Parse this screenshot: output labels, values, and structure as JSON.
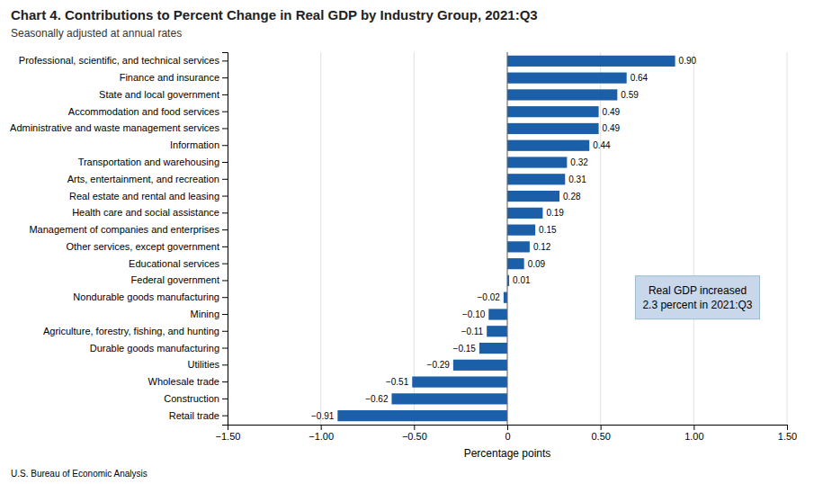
{
  "chart_data": {
    "type": "bar",
    "orientation": "horizontal",
    "title": "Chart 4. Contributions to Percent Change in Real GDP by Industry Group, 2021:Q3",
    "subtitle": "Seasonally adjusted at annual rates",
    "xlabel": "Percentage points",
    "footer": "U.S. Bureau of Economic Analysis",
    "annotations": [
      "Real GDP increased",
      "2.3 percent in 2021:Q3"
    ],
    "categories": [
      "Professional, scientific, and technical services",
      "Finance and insurance",
      "State and local government",
      "Accommodation and food services",
      "Administrative and waste management services",
      "Information",
      "Transportation and warehousing",
      "Arts, entertainment, and recreation",
      "Real estate and rental and leasing",
      "Health care and social assistance",
      "Management of companies and enterprises",
      "Other services, except government",
      "Educational services",
      "Federal government",
      "Nondurable goods manufacturing",
      "Mining",
      "Agriculture, forestry, fishing, and hunting",
      "Durable goods manufacturing",
      "Utilities",
      "Wholesale trade",
      "Construction",
      "Retail trade"
    ],
    "values": [
      0.9,
      0.64,
      0.59,
      0.49,
      0.49,
      0.44,
      0.32,
      0.31,
      0.28,
      0.19,
      0.15,
      0.12,
      0.09,
      0.01,
      -0.02,
      -0.1,
      -0.11,
      -0.15,
      -0.29,
      -0.51,
      -0.62,
      -0.91
    ],
    "value_labels": [
      "0.90",
      "0.64",
      "0.59",
      "0.49",
      "0.49",
      "0.44",
      "0.32",
      "0.31",
      "0.28",
      "0.19",
      "0.15",
      "0.12",
      "0.09",
      "0.01",
      "−0.02",
      "−0.10",
      "−0.11",
      "−0.15",
      "−0.29",
      "−0.51",
      "−0.62",
      "−0.91"
    ],
    "data_labels": true,
    "color": "#1B5FA8",
    "xlim": [
      -1.5,
      1.5
    ],
    "xticks": [
      {
        "value": -1.5,
        "label": "−1.50"
      },
      {
        "value": -1.0,
        "label": "−1.00"
      },
      {
        "value": -0.5,
        "label": "−0.50"
      },
      0,
      {
        "value": 0.5,
        "label": "0.50"
      },
      {
        "value": 1.0,
        "label": "1.00"
      },
      {
        "value": 1.5,
        "label": "1.50"
      }
    ],
    "grid": true
  }
}
